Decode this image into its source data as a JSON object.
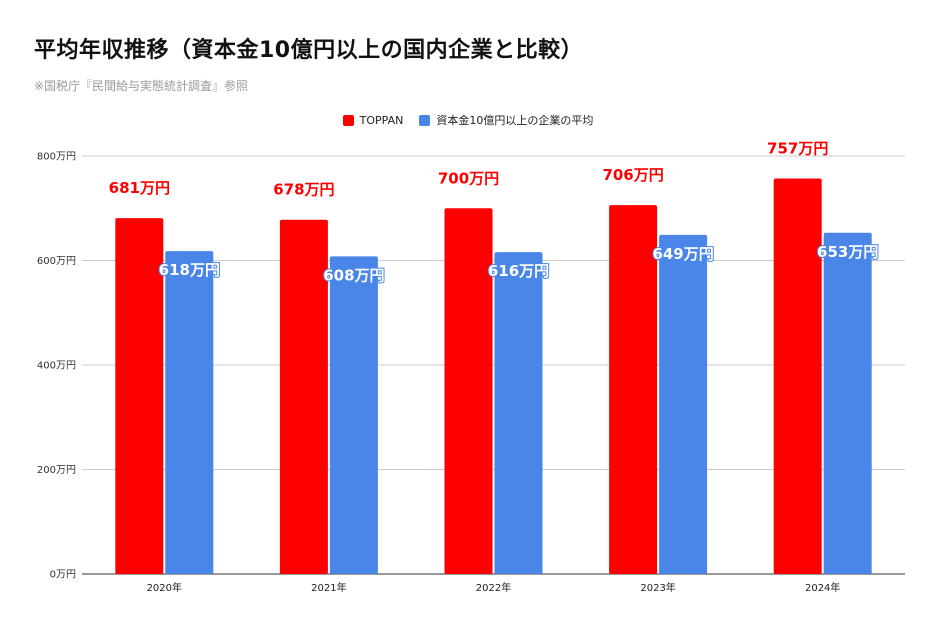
{
  "header": {
    "title": "平均年収推移（資本金10億円以上の国内企業と比較）",
    "subtitle": "※国税庁『民間給与実態統計調査』参照"
  },
  "chart_data": {
    "type": "bar",
    "categories": [
      "2020年",
      "2021年",
      "2022年",
      "2023年",
      "2024年"
    ],
    "series": [
      {
        "name": "TOPPAN",
        "color": "#ff0000",
        "values": [
          681,
          678,
          700,
          706,
          757
        ],
        "labels": [
          "681万円",
          "678万円",
          "700万円",
          "706万円",
          "757万円"
        ]
      },
      {
        "name": "資本金10億円以上の企業の平均",
        "color": "#4a86e8",
        "values": [
          618,
          608,
          616,
          649,
          653
        ],
        "labels": [
          "618万円",
          "608万円",
          "616万円",
          "649万円",
          "653万円"
        ]
      }
    ],
    "yticks": [
      {
        "value": 0,
        "label": "0万円"
      },
      {
        "value": 200,
        "label": "200万円"
      },
      {
        "value": 400,
        "label": "400万円"
      },
      {
        "value": 600,
        "label": "600万円"
      },
      {
        "value": 800,
        "label": "800万円"
      }
    ],
    "ylim": [
      0,
      800
    ],
    "grid": true,
    "legend_position": "top-center",
    "gridline_color": "#cccccc",
    "axis_color": "#333333"
  }
}
